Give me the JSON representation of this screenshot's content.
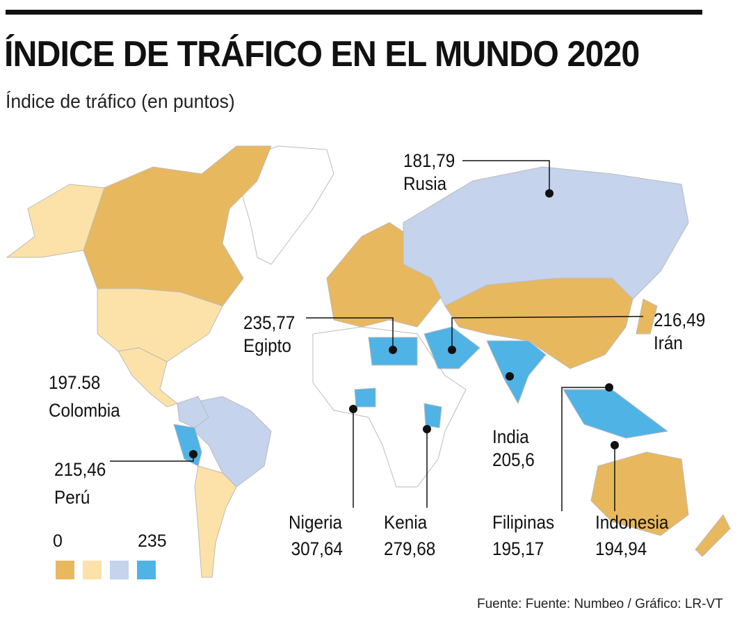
{
  "title": "ÍNDICE DE TRÁFICO EN EL MUNDO 2020",
  "subtitle": "Índice de tráfico (en puntos)",
  "colors": {
    "band1": "#E8B85E",
    "band2": "#FCE2A8",
    "band3": "#C5D3EC",
    "band4": "#4FB3E6",
    "greyland": "#FFFFFF"
  },
  "countries": [
    {
      "name": "Rusia",
      "value": "181,79"
    },
    {
      "name": "Egipto",
      "value": "235,77"
    },
    {
      "name": "Irán",
      "value": "216,49"
    },
    {
      "name": "Colombia",
      "value": "197.58"
    },
    {
      "name": "Perú",
      "value": "215,46"
    },
    {
      "name": "India",
      "value": "205,6"
    },
    {
      "name": "Nigeria",
      "value": "307,64"
    },
    {
      "name": "Kenia",
      "value": "279,68"
    },
    {
      "name": "Filipinas",
      "value": "195,17"
    },
    {
      "name": "Indonesia",
      "value": "194,94"
    }
  ],
  "legend": {
    "min": "0",
    "max": "235"
  },
  "source": "Fuente: Fuente: Numbeo  / Gráfico: LR-VT"
}
